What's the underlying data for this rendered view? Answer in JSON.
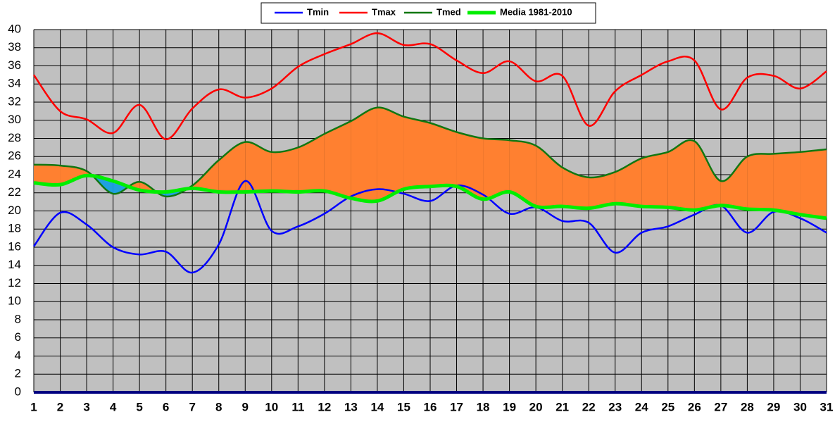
{
  "chart_data": {
    "type": "line",
    "x": [
      1,
      2,
      3,
      4,
      5,
      6,
      7,
      8,
      9,
      10,
      11,
      12,
      13,
      14,
      15,
      16,
      17,
      18,
      19,
      20,
      21,
      22,
      23,
      24,
      25,
      26,
      27,
      28,
      29,
      30,
      31
    ],
    "xlim": [
      1,
      31
    ],
    "xticks": [
      1,
      2,
      3,
      4,
      5,
      6,
      7,
      8,
      9,
      10,
      11,
      12,
      13,
      14,
      15,
      16,
      17,
      18,
      19,
      20,
      21,
      22,
      23,
      24,
      25,
      26,
      27,
      28,
      29,
      30,
      31
    ],
    "ylim": [
      0,
      40
    ],
    "yticks": [
      0,
      2,
      4,
      6,
      8,
      10,
      12,
      14,
      16,
      18,
      20,
      22,
      24,
      26,
      28,
      30,
      32,
      34,
      36,
      38,
      40
    ],
    "grid": true,
    "legend": "top",
    "fill_between": {
      "upper_color": "#ff8030",
      "lower_color": "#20a0e0"
    },
    "series": [
      {
        "name": "Tmin",
        "color": "#0000ff",
        "values": [
          16.1,
          19.8,
          18.5,
          16.0,
          15.2,
          15.5,
          13.2,
          16.3,
          23.3,
          17.8,
          18.3,
          19.7,
          21.6,
          22.4,
          21.9,
          21.1,
          22.8,
          21.8,
          19.7,
          20.4,
          18.9,
          18.7,
          15.4,
          17.6,
          18.3,
          19.6,
          20.6,
          17.6,
          19.9,
          19.2,
          17.6
        ]
      },
      {
        "name": "Tmax",
        "color": "#ff0000",
        "values": [
          35.0,
          31.0,
          30.1,
          28.6,
          31.7,
          27.9,
          31.3,
          33.4,
          32.5,
          33.5,
          35.9,
          37.3,
          38.4,
          39.6,
          38.3,
          38.4,
          36.6,
          35.2,
          36.5,
          34.3,
          34.9,
          29.4,
          33.2,
          35.0,
          36.5,
          36.6,
          31.2,
          34.7,
          34.9,
          33.5,
          35.4
        ]
      },
      {
        "name": "Tmed",
        "color": "#117711",
        "values": [
          25.1,
          25.0,
          24.4,
          21.9,
          23.2,
          21.6,
          22.8,
          25.6,
          27.6,
          26.5,
          27.0,
          28.5,
          29.9,
          31.4,
          30.4,
          29.7,
          28.7,
          28.0,
          27.8,
          27.2,
          24.8,
          23.7,
          24.3,
          25.8,
          26.5,
          27.7,
          23.3,
          26.0,
          26.3,
          26.5,
          26.8
        ]
      },
      {
        "name": "Media 1981-2010",
        "color": "#00ee00",
        "values": [
          23.1,
          22.9,
          23.9,
          23.3,
          22.3,
          22.1,
          22.5,
          22.1,
          22.1,
          22.2,
          22.1,
          22.2,
          21.4,
          21.1,
          22.4,
          22.7,
          22.7,
          21.3,
          22.1,
          20.5,
          20.5,
          20.3,
          20.8,
          20.5,
          20.4,
          20.1,
          20.6,
          20.2,
          20.1,
          19.6,
          19.2
        ]
      }
    ]
  }
}
